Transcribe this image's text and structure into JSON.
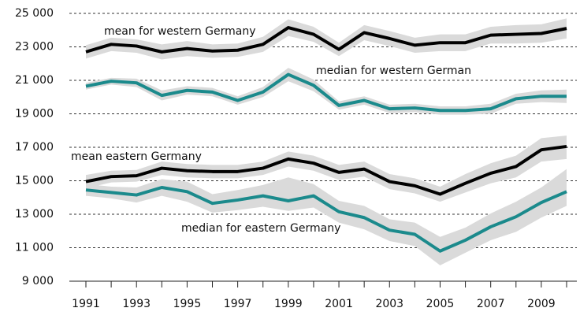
{
  "chart_data": {
    "type": "line",
    "x": [
      1991,
      1992,
      1993,
      1994,
      1995,
      1996,
      1997,
      1998,
      1999,
      2000,
      2001,
      2002,
      2003,
      2004,
      2005,
      2006,
      2007,
      2008,
      2009,
      2010
    ],
    "xlim": [
      1991,
      2010
    ],
    "xticks": [
      1991,
      1993,
      1995,
      1997,
      1999,
      2001,
      2003,
      2005,
      2007,
      2009
    ],
    "ylim": [
      9000,
      25000
    ],
    "yticks": [
      {
        "value": 9000,
        "label": "9 000"
      },
      {
        "value": 11000,
        "label": "11 000"
      },
      {
        "value": 13000,
        "label": "13 000"
      },
      {
        "value": 15000,
        "label": "15 000"
      },
      {
        "value": 17000,
        "label": "17 000"
      },
      {
        "value": 19000,
        "label": "19 000"
      },
      {
        "value": 21000,
        "label": "21 000"
      },
      {
        "value": 23000,
        "label": "23 000"
      },
      {
        "value": 25000,
        "label": "25 000"
      }
    ],
    "grid": true,
    "band_color": "#dadada",
    "series": [
      {
        "name": "mean for western Germany",
        "color": "#000000",
        "values": [
          22700,
          23150,
          23050,
          22700,
          22900,
          22750,
          22800,
          23150,
          24150,
          23750,
          22850,
          23850,
          23500,
          23100,
          23250,
          23250,
          23700,
          23750,
          23800,
          24100
        ],
        "lower": [
          22300,
          22750,
          22650,
          22250,
          22450,
          22350,
          22400,
          22700,
          23650,
          23300,
          22450,
          23400,
          23050,
          22650,
          22750,
          22750,
          23200,
          23200,
          23250,
          23500
        ],
        "upper": [
          23100,
          23550,
          23450,
          23150,
          23350,
          23150,
          23200,
          23600,
          24650,
          24200,
          23250,
          24300,
          23950,
          23550,
          23750,
          23750,
          24200,
          24300,
          24350,
          24700
        ]
      },
      {
        "name": "median for western German",
        "color": "#1b8a8c",
        "values": [
          20650,
          20950,
          20850,
          20100,
          20400,
          20300,
          19800,
          20300,
          21350,
          20700,
          19500,
          19800,
          19300,
          19350,
          19200,
          19200,
          19300,
          19900,
          20050,
          20050
        ],
        "lower": [
          20450,
          20750,
          20600,
          19800,
          20150,
          20050,
          19550,
          20000,
          20950,
          20350,
          19250,
          19550,
          19050,
          19100,
          18950,
          18950,
          19000,
          19600,
          19700,
          19650
        ],
        "upper": [
          20850,
          21150,
          21100,
          20400,
          20650,
          20550,
          20050,
          20600,
          21750,
          21050,
          19750,
          20050,
          19550,
          19600,
          19450,
          19450,
          19600,
          20200,
          20400,
          20450
        ]
      },
      {
        "name": "mean eastern Germany",
        "color": "#000000",
        "values": [
          14950,
          15250,
          15300,
          15750,
          15600,
          15550,
          15550,
          15750,
          16300,
          16050,
          15500,
          15700,
          14950,
          14700,
          14200,
          14850,
          15450,
          15850,
          16850,
          17050
        ],
        "lower": [
          14550,
          14900,
          14950,
          15350,
          15200,
          15150,
          15150,
          15350,
          15850,
          15600,
          15050,
          15250,
          14500,
          14250,
          13750,
          14300,
          14850,
          15200,
          16150,
          16300
        ],
        "upper": [
          15350,
          15600,
          15650,
          16150,
          16000,
          15950,
          15950,
          16150,
          16750,
          16500,
          15950,
          16150,
          15400,
          15150,
          14650,
          15400,
          16050,
          16500,
          17550,
          17700
        ]
      },
      {
        "name": "median for eastern Germany",
        "color": "#1b8a8c",
        "values": [
          14450,
          14300,
          14150,
          14600,
          14350,
          13650,
          13850,
          14100,
          13800,
          14100,
          13150,
          12800,
          12050,
          11800,
          10800,
          11450,
          12250,
          12850,
          13700,
          14350
        ],
        "lower": [
          14100,
          13950,
          13700,
          14100,
          13750,
          13100,
          13250,
          13450,
          13200,
          13400,
          12500,
          12100,
          11400,
          11100,
          9950,
          10700,
          11450,
          11950,
          12800,
          13500
        ],
        "upper": [
          14800,
          14650,
          14600,
          15100,
          14950,
          14200,
          14450,
          14750,
          15200,
          14800,
          13800,
          13500,
          12700,
          12500,
          11650,
          12200,
          13050,
          13750,
          14600,
          15700
        ]
      }
    ]
  }
}
